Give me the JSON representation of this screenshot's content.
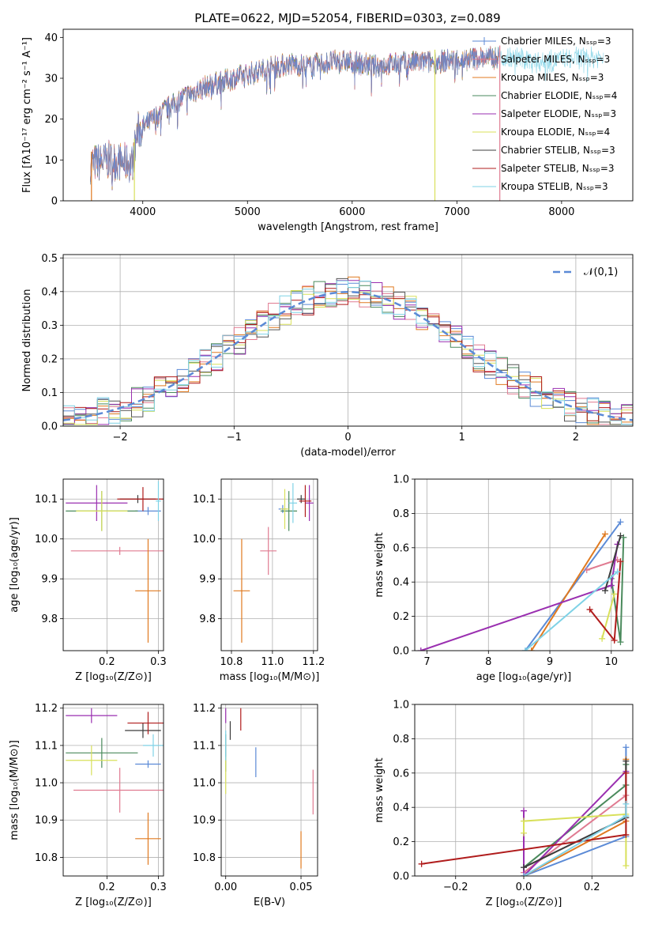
{
  "title": "PLATE=0622, MJD=52054, FIBERID=0303, z=0.089",
  "colors": {
    "Chabrier MILES": "#5b8ad6",
    "Salpeter MILES": "#e07b91",
    "Kroupa MILES": "#e07a20",
    "Chabrier ELODIE": "#4a8a5c",
    "Salpeter ELODIE": "#9a2fb0",
    "Kroupa ELODIE": "#d8e05a",
    "Chabrier STELIB": "#3c3c3c",
    "Salpeter STELIB": "#b01c1c",
    "Kroupa STELIB": "#7fd2e6"
  },
  "chart_data": [
    {
      "type": "line",
      "name": "spectrum",
      "xlabel": "wavelength [Angstrom, rest frame]",
      "ylabel": "Flux [fλ10⁻¹⁷ erg cm⁻² s⁻¹ A⁻¹]",
      "xlim": [
        3240,
        8680
      ],
      "ylim": [
        0,
        42
      ],
      "xticks": [
        4000,
        5000,
        6000,
        7000,
        8000
      ],
      "yticks": [
        0,
        10,
        20,
        30,
        40
      ],
      "legend_position": "top-right",
      "series": [
        {
          "name": "Chabrier MILES, Nₛₛₚ=3"
        },
        {
          "name": "Salpeter MILES, Nₛₛₚ=3"
        },
        {
          "name": "Kroupa MILES, Nₛₛₚ=3"
        },
        {
          "name": "Chabrier ELODIE, Nₛₛₚ=4"
        },
        {
          "name": "Salpeter ELODIE, Nₛₛₚ=3"
        },
        {
          "name": "Kroupa ELODIE, Nₛₛₚ=4"
        },
        {
          "name": "Chabrier STELIB, Nₛₛₚ=3"
        },
        {
          "name": "Salpeter STELIB, Nₛₛₚ=3"
        },
        {
          "name": "Kroupa STELIB, Nₛₛₚ=3"
        }
      ],
      "continuum": {
        "x": [
          3500,
          3700,
          3900,
          3950,
          4000,
          4200,
          4400,
          4600,
          4800,
          5000,
          5200,
          5400,
          5600,
          5800,
          6000,
          6200,
          6400,
          6600,
          6800,
          7000,
          7200,
          7400,
          7600,
          7800,
          8000,
          8200,
          8400
        ],
        "y": [
          9,
          10,
          9,
          17,
          18,
          22,
          25.5,
          28,
          29.5,
          31,
          32.5,
          33.5,
          33,
          34,
          34,
          33,
          33.5,
          34,
          34,
          34.5,
          35,
          35,
          35,
          34,
          34.5,
          35,
          35
        ]
      },
      "dropouts": [
        {
          "x": 3510,
          "series": "Kroupa MILES"
        },
        {
          "x": 3920,
          "series": "Kroupa ELODIE"
        },
        {
          "x": 6790,
          "series": "Kroupa ELODIE"
        },
        {
          "x": 7410,
          "series": "Salpeter MILES"
        }
      ]
    },
    {
      "type": "histogram",
      "name": "residuals",
      "xlabel": "(data-model)/error",
      "ylabel": "Normed distribution",
      "xlim": [
        -2.5,
        2.5
      ],
      "ylim": [
        0,
        0.51
      ],
      "xticks": [
        -2,
        -1,
        0,
        1,
        2
      ],
      "yticks": [
        0.0,
        0.1,
        0.2,
        0.3,
        0.4,
        0.5
      ],
      "legend": "𝒩(0,1)",
      "legend_position": "top-right",
      "bin_width": 0.1,
      "bin_start": -2.5
    },
    {
      "type": "scatter-errorbar",
      "name": "age-vs-Z",
      "xlabel": "Z [log₁₀(Z/Z⊙)]",
      "ylabel": "age  [log₁₀(age/yr)]",
      "xlim": [
        0.115,
        0.31
      ],
      "ylim": [
        9.72,
        10.15
      ],
      "xticks": [
        0.2,
        0.3
      ],
      "xticklabels": [
        "0.2",
        "0.3"
      ],
      "yticks": [
        9.8,
        9.9,
        10.0,
        10.1
      ],
      "points": [
        {
          "s": "Chabrier MILES",
          "x": 0.28,
          "y": 10.07,
          "xe": 0.025,
          "ye": 0.01
        },
        {
          "s": "Salpeter MILES",
          "x": 0.225,
          "y": 9.97,
          "xe": 0.095,
          "ye": 0.01
        },
        {
          "s": "Kroupa MILES",
          "x": 0.28,
          "y": 9.87,
          "xe": 0.025,
          "ye": 0.13
        },
        {
          "s": "Chabrier ELODIE",
          "x": 0.19,
          "y": 10.07,
          "xe": 0.07,
          "ye": 0.05
        },
        {
          "s": "Salpeter ELODIE",
          "x": 0.18,
          "y": 10.09,
          "xe": 0.06,
          "ye": 0.045
        },
        {
          "s": "Kroupa ELODIE",
          "x": 0.19,
          "y": 10.07,
          "xe": 0.05,
          "ye": 0.05
        },
        {
          "s": "Chabrier STELIB",
          "x": 0.26,
          "y": 10.1,
          "xe": 0.035,
          "ye": 0.01
        },
        {
          "s": "Salpeter STELIB",
          "x": 0.27,
          "y": 10.1,
          "xe": 0.05,
          "ye": 0.03
        },
        {
          "s": "Kroupa STELIB",
          "x": 0.3,
          "y": 10.095,
          "xe": 0.005,
          "ye": 0.05
        }
      ]
    },
    {
      "type": "scatter-errorbar",
      "name": "age-vs-mass",
      "xlabel": "mass [log₁₀(M/M⊙)]",
      "xlim": [
        10.75,
        11.22
      ],
      "ylim": [
        9.72,
        10.15
      ],
      "xticks": [
        10.8,
        11.0,
        11.2
      ],
      "xticklabels": [
        "10.8",
        "11.0",
        "11.2"
      ],
      "yticks": [
        9.8,
        9.9,
        10.0,
        10.1
      ],
      "points": [
        {
          "s": "Chabrier MILES",
          "x": 11.05,
          "y": 10.075,
          "xe": 0.02,
          "ye": 0.01
        },
        {
          "s": "Salpeter MILES",
          "x": 10.98,
          "y": 9.97,
          "xe": 0.04,
          "ye": 0.06
        },
        {
          "s": "Kroupa MILES",
          "x": 10.85,
          "y": 9.87,
          "xe": 0.04,
          "ye": 0.13
        },
        {
          "s": "Chabrier ELODIE",
          "x": 11.08,
          "y": 10.07,
          "xe": 0.04,
          "ye": 0.05
        },
        {
          "s": "Salpeter ELODIE",
          "x": 11.18,
          "y": 10.09,
          "xe": 0.02,
          "ye": 0.045
        },
        {
          "s": "Kroupa ELODIE",
          "x": 11.06,
          "y": 10.075,
          "xe": 0.02,
          "ye": 0.05
        },
        {
          "s": "Chabrier STELIB",
          "x": 11.14,
          "y": 10.1,
          "xe": 0.02,
          "ye": 0.01
        },
        {
          "s": "Salpeter STELIB",
          "x": 11.16,
          "y": 10.095,
          "xe": 0.03,
          "ye": 0.04
        },
        {
          "s": "Kroupa STELIB",
          "x": 11.1,
          "y": 10.09,
          "xe": 0.02,
          "ye": 0.05
        }
      ]
    },
    {
      "type": "line",
      "name": "mass-weight-vs-age",
      "xlabel": "age  [log₁₀(age/yr)]",
      "ylabel": "mass weight",
      "xlim": [
        6.8,
        10.35
      ],
      "ylim": [
        0,
        1.0
      ],
      "xticks": [
        7,
        8,
        9,
        10
      ],
      "yticks": [
        0.0,
        0.2,
        0.4,
        0.6,
        0.8,
        1.0
      ],
      "series": [
        {
          "s": "Chabrier MILES",
          "x": [
            8.6,
            10.15
          ],
          "y": [
            0.0,
            0.75
          ]
        },
        {
          "s": "Salpeter MILES",
          "x": [
            9.6,
            10.1
          ],
          "y": [
            0.47,
            0.53
          ]
        },
        {
          "s": "Kroupa MILES",
          "x": [
            8.7,
            9.9
          ],
          "y": [
            0.0,
            0.68
          ]
        },
        {
          "s": "Chabrier ELODIE",
          "x": [
            10.0,
            10.15,
            10.2
          ],
          "y": [
            0.42,
            0.05,
            0.66
          ]
        },
        {
          "s": "Salpeter ELODIE",
          "x": [
            6.9,
            10.0,
            10.1
          ],
          "y": [
            0.0,
            0.38,
            0.62
          ]
        },
        {
          "s": "Kroupa ELODIE",
          "x": [
            9.85,
            10.05
          ],
          "y": [
            0.07,
            0.33
          ]
        },
        {
          "s": "Chabrier STELIB",
          "x": [
            9.9,
            10.15
          ],
          "y": [
            0.35,
            0.67
          ]
        },
        {
          "s": "Salpeter STELIB",
          "x": [
            9.65,
            10.05,
            10.15
          ],
          "y": [
            0.24,
            0.06,
            0.52
          ]
        },
        {
          "s": "Kroupa STELIB",
          "x": [
            8.6,
            10.1
          ],
          "y": [
            0.0,
            0.46
          ]
        }
      ]
    },
    {
      "type": "scatter-errorbar",
      "name": "mass-vs-Z",
      "xlabel": "Z [log₁₀(Z/Z⊙)]",
      "ylabel": "mass [log₁₀(M/M⊙)]",
      "xlim": [
        0.115,
        0.31
      ],
      "ylim": [
        10.75,
        11.21
      ],
      "xticks": [
        0.2,
        0.3
      ],
      "xticklabels": [
        "0.2",
        "0.3"
      ],
      "yticks": [
        10.8,
        10.9,
        11.0,
        11.1,
        11.2
      ],
      "points": [
        {
          "s": "Chabrier MILES",
          "x": 0.28,
          "y": 11.05,
          "xe": 0.025,
          "ye": 0.01
        },
        {
          "s": "Salpeter MILES",
          "x": 0.225,
          "y": 10.98,
          "xe": 0.09,
          "ye": 0.06
        },
        {
          "s": "Kroupa MILES",
          "x": 0.28,
          "y": 10.85,
          "xe": 0.025,
          "ye": 0.07
        },
        {
          "s": "Chabrier ELODIE",
          "x": 0.19,
          "y": 11.08,
          "xe": 0.07,
          "ye": 0.04
        },
        {
          "s": "Salpeter ELODIE",
          "x": 0.17,
          "y": 11.18,
          "xe": 0.05,
          "ye": 0.02
        },
        {
          "s": "Kroupa ELODIE",
          "x": 0.17,
          "y": 11.06,
          "xe": 0.05,
          "ye": 0.04
        },
        {
          "s": "Chabrier STELIB",
          "x": 0.27,
          "y": 11.14,
          "xe": 0.035,
          "ye": 0.02
        },
        {
          "s": "Salpeter STELIB",
          "x": 0.28,
          "y": 11.16,
          "xe": 0.04,
          "ye": 0.03
        },
        {
          "s": "Kroupa STELIB",
          "x": 0.29,
          "y": 11.1,
          "xe": 0.02,
          "ye": 0.03
        }
      ]
    },
    {
      "type": "scatter-errorbar",
      "name": "mass-vs-ebv",
      "xlabel": "E(B-V)",
      "xlim": [
        -0.003,
        0.061
      ],
      "ylim": [
        10.75,
        11.21
      ],
      "xticks": [
        0.0,
        0.05
      ],
      "xticklabels": [
        "0.00",
        "0.05"
      ],
      "yticks": [
        10.8,
        10.9,
        11.0,
        11.1,
        11.2
      ],
      "points": [
        {
          "s": "Chabrier MILES",
          "x": 0.02,
          "y": 11.055,
          "ye": 0.04
        },
        {
          "s": "Salpeter MILES",
          "x": 0.058,
          "y": 10.975,
          "ye": 0.06
        },
        {
          "s": "Kroupa MILES",
          "x": 0.05,
          "y": 10.82,
          "ye": 0.05
        },
        {
          "s": "Chabrier ELODIE",
          "x": 0.0,
          "y": 11.08,
          "ye": 0.05
        },
        {
          "s": "Salpeter ELODIE",
          "x": 0.0,
          "y": 11.18,
          "ye": 0.02
        },
        {
          "s": "Kroupa ELODIE",
          "x": 0.0,
          "y": 11.02,
          "ye": 0.05
        },
        {
          "s": "Chabrier STELIB",
          "x": 0.003,
          "y": 11.14,
          "ye": 0.025
        },
        {
          "s": "Salpeter STELIB",
          "x": 0.01,
          "y": 11.17,
          "ye": 0.03
        },
        {
          "s": "Kroupa STELIB",
          "x": 0.0,
          "y": 11.1,
          "ye": 0.04
        }
      ]
    },
    {
      "type": "line",
      "name": "mass-weight-vs-Z",
      "xlabel": "Z [log₁₀(Z/Z⊙)]",
      "ylabel": "mass weight",
      "xlim": [
        -0.32,
        0.32
      ],
      "ylim": [
        0,
        1.0
      ],
      "xticks": [
        -0.2,
        0.0,
        0.2
      ],
      "xticklabels": [
        "−0.2",
        "0.0",
        "0.2"
      ],
      "yticks": [
        0.0,
        0.2,
        0.4,
        0.6,
        0.8,
        1.0
      ],
      "series": [
        {
          "s": "Chabrier MILES",
          "x": [
            0.0,
            0.3,
            0.3
          ],
          "y": [
            0.0,
            0.23,
            0.75
          ]
        },
        {
          "s": "Salpeter MILES",
          "x": [
            0.0,
            0.3,
            0.3
          ],
          "y": [
            0.02,
            0.47,
            0.53
          ]
        },
        {
          "s": "Kroupa MILES",
          "x": [
            0.0,
            0.3,
            0.3
          ],
          "y": [
            0.0,
            0.32,
            0.68
          ]
        },
        {
          "s": "Chabrier ELODIE",
          "x": [
            0.0,
            0.3,
            0.3
          ],
          "y": [
            0.05,
            0.53,
            0.65
          ]
        },
        {
          "s": "Salpeter ELODIE",
          "x": [
            0.0,
            0.0,
            0.3
          ],
          "y": [
            0.38,
            0.0,
            0.61
          ]
        },
        {
          "s": "Kroupa ELODIE",
          "x": [
            0.0,
            0.0,
            0.3,
            0.3
          ],
          "y": [
            0.25,
            0.32,
            0.36,
            0.06
          ]
        },
        {
          "s": "Chabrier STELIB",
          "x": [
            0.0,
            0.3,
            0.3
          ],
          "y": [
            0.05,
            0.34,
            0.67
          ]
        },
        {
          "s": "Salpeter STELIB",
          "x": [
            -0.3,
            0.3,
            0.3
          ],
          "y": [
            0.07,
            0.24,
            0.6
          ]
        },
        {
          "s": "Kroupa STELIB",
          "x": [
            0.0,
            0.3,
            0.3
          ],
          "y": [
            0.0,
            0.35,
            0.42
          ]
        }
      ]
    }
  ]
}
